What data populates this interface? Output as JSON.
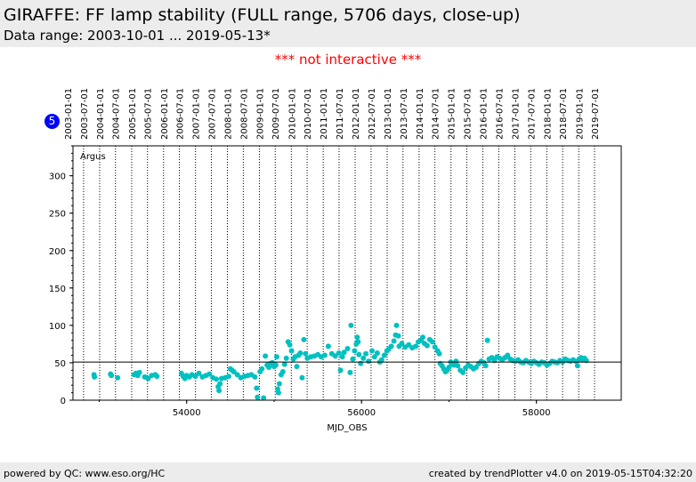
{
  "header": {
    "title": "GIRAFFE: FF lamp stability (FULL range, 5706 days, close-up)",
    "subtitle": "Data range: 2003-10-01 ... 2019-05-13*"
  },
  "notice": "*** not interactive ***",
  "badge": "5",
  "footer": {
    "left": "powered by QC: www.eso.org/HC",
    "right": "created by trendPlotter v4.0 on 2019-05-15T04:32:20"
  },
  "colors": {
    "points": "#00c0c0",
    "notice": "#ff0000",
    "badge": "#0000ff",
    "background_bars": "#ececec"
  },
  "chart_data": {
    "type": "scatter",
    "xlabel": "MJD_OBS",
    "ylabel": "",
    "xlim": [
      52700,
      58970
    ],
    "ylim": [
      0,
      340
    ],
    "xticks": [
      54000,
      56000,
      58000
    ],
    "yticks": [
      0,
      50,
      100,
      150,
      200,
      250,
      300
    ],
    "panel_label": "Argus",
    "reference_line_y": 51,
    "top_axis_dates": [
      "2003-01-01",
      "2003-07-01",
      "2004-01-01",
      "2004-07-01",
      "2005-01-01",
      "2005-07-01",
      "2006-01-01",
      "2006-07-01",
      "2007-01-01",
      "2007-07-01",
      "2008-01-01",
      "2008-07-01",
      "2009-01-01",
      "2009-07-01",
      "2010-01-01",
      "2010-07-01",
      "2011-01-01",
      "2011-07-01",
      "2012-01-01",
      "2012-07-01",
      "2013-01-01",
      "2013-07-01",
      "2014-01-01",
      "2014-07-01",
      "2015-01-01",
      "2015-07-01",
      "2016-01-01",
      "2016-07-01",
      "2017-01-01",
      "2017-07-01",
      "2018-01-01",
      "2018-07-01",
      "2019-01-01",
      "2019-07-01"
    ],
    "top_axis_mjd": [
      52640,
      52821,
      53005,
      53186,
      53371,
      53552,
      53736,
      53917,
      54101,
      54282,
      54466,
      54648,
      54832,
      55013,
      55197,
      55378,
      55562,
      55743,
      55927,
      56109,
      56293,
      56474,
      56658,
      56839,
      57023,
      57204,
      57388,
      57570,
      57754,
      57935,
      58119,
      58300,
      58484,
      58665
    ],
    "series": [
      {
        "points": [
          [
            52940,
            34
          ],
          [
            52945,
            31
          ],
          [
            53130,
            35
          ],
          [
            53140,
            33
          ],
          [
            53210,
            30
          ],
          [
            53400,
            34
          ],
          [
            53420,
            36
          ],
          [
            53440,
            33
          ],
          [
            53460,
            37
          ],
          [
            53520,
            31
          ],
          [
            53560,
            29
          ],
          [
            53600,
            33
          ],
          [
            53640,
            34
          ],
          [
            53660,
            32
          ],
          [
            53940,
            36
          ],
          [
            53960,
            32
          ],
          [
            53980,
            29
          ],
          [
            54000,
            33
          ],
          [
            54030,
            31
          ],
          [
            54060,
            34
          ],
          [
            54100,
            32
          ],
          [
            54140,
            36
          ],
          [
            54180,
            31
          ],
          [
            54220,
            33
          ],
          [
            54260,
            35
          ],
          [
            54300,
            30
          ],
          [
            54340,
            28
          ],
          [
            54360,
            18
          ],
          [
            54370,
            13
          ],
          [
            54380,
            22
          ],
          [
            54400,
            29
          ],
          [
            54440,
            30
          ],
          [
            54480,
            32
          ],
          [
            54500,
            42
          ],
          [
            54520,
            40
          ],
          [
            54540,
            38
          ],
          [
            54580,
            34
          ],
          [
            54620,
            30
          ],
          [
            54660,
            32
          ],
          [
            54700,
            33
          ],
          [
            54740,
            34
          ],
          [
            54780,
            31
          ],
          [
            54800,
            16
          ],
          [
            54810,
            4
          ],
          [
            54840,
            38
          ],
          [
            54860,
            42
          ],
          [
            54880,
            3
          ],
          [
            54900,
            59
          ],
          [
            54920,
            47
          ],
          [
            54940,
            44
          ],
          [
            54960,
            49
          ],
          [
            54980,
            50
          ],
          [
            55000,
            45
          ],
          [
            55020,
            47
          ],
          [
            55030,
            58
          ],
          [
            55040,
            15
          ],
          [
            55050,
            10
          ],
          [
            55060,
            22
          ],
          [
            55080,
            34
          ],
          [
            55100,
            38
          ],
          [
            55120,
            48
          ],
          [
            55140,
            56
          ],
          [
            55160,
            78
          ],
          [
            55180,
            74
          ],
          [
            55200,
            66
          ],
          [
            55220,
            55
          ],
          [
            55240,
            58
          ],
          [
            55260,
            45
          ],
          [
            55280,
            60
          ],
          [
            55300,
            63
          ],
          [
            55320,
            30
          ],
          [
            55340,
            81
          ],
          [
            55360,
            62
          ],
          [
            55380,
            56
          ],
          [
            55420,
            58
          ],
          [
            55460,
            59
          ],
          [
            55500,
            61
          ],
          [
            55540,
            58
          ],
          [
            55580,
            60
          ],
          [
            55620,
            72
          ],
          [
            55660,
            62
          ],
          [
            55700,
            59
          ],
          [
            55740,
            63
          ],
          [
            55760,
            40
          ],
          [
            55780,
            58
          ],
          [
            55800,
            64
          ],
          [
            55840,
            69
          ],
          [
            55870,
            37
          ],
          [
            55880,
            100
          ],
          [
            55900,
            55
          ],
          [
            55920,
            66
          ],
          [
            55940,
            75
          ],
          [
            55950,
            84
          ],
          [
            55960,
            78
          ],
          [
            55970,
            61
          ],
          [
            55990,
            49
          ],
          [
            56020,
            56
          ],
          [
            56050,
            62
          ],
          [
            56080,
            52
          ],
          [
            56120,
            66
          ],
          [
            56150,
            58
          ],
          [
            56180,
            63
          ],
          [
            56210,
            51
          ],
          [
            56230,
            54
          ],
          [
            56260,
            60
          ],
          [
            56290,
            66
          ],
          [
            56310,
            68
          ],
          [
            56340,
            72
          ],
          [
            56370,
            79
          ],
          [
            56390,
            87
          ],
          [
            56400,
            100
          ],
          [
            56420,
            86
          ],
          [
            56430,
            72
          ],
          [
            56460,
            76
          ],
          [
            56500,
            71
          ],
          [
            56540,
            74
          ],
          [
            56580,
            70
          ],
          [
            56620,
            72
          ],
          [
            56650,
            78
          ],
          [
            56680,
            80
          ],
          [
            56700,
            84
          ],
          [
            56720,
            76
          ],
          [
            56750,
            73
          ],
          [
            56780,
            81
          ],
          [
            56810,
            78
          ],
          [
            56840,
            71
          ],
          [
            56870,
            66
          ],
          [
            56890,
            62
          ],
          [
            56900,
            49
          ],
          [
            56920,
            46
          ],
          [
            56940,
            42
          ],
          [
            56960,
            38
          ],
          [
            56980,
            40
          ],
          [
            57000,
            44
          ],
          [
            57020,
            51
          ],
          [
            57040,
            48
          ],
          [
            57060,
            47
          ],
          [
            57080,
            52
          ],
          [
            57100,
            46
          ],
          [
            57130,
            40
          ],
          [
            57160,
            37
          ],
          [
            57190,
            43
          ],
          [
            57220,
            47
          ],
          [
            57250,
            45
          ],
          [
            57280,
            42
          ],
          [
            57310,
            44
          ],
          [
            57340,
            49
          ],
          [
            57370,
            52
          ],
          [
            57400,
            50
          ],
          [
            57420,
            46
          ],
          [
            57440,
            80
          ],
          [
            57460,
            55
          ],
          [
            57490,
            57
          ],
          [
            57520,
            53
          ],
          [
            57550,
            58
          ],
          [
            57580,
            56
          ],
          [
            57610,
            54
          ],
          [
            57640,
            57
          ],
          [
            57670,
            60
          ],
          [
            57700,
            55
          ],
          [
            57730,
            53
          ],
          [
            57760,
            52
          ],
          [
            57790,
            54
          ],
          [
            57820,
            51
          ],
          [
            57850,
            50
          ],
          [
            57880,
            53
          ],
          [
            57910,
            51
          ],
          [
            57940,
            49
          ],
          [
            57970,
            52
          ],
          [
            58000,
            50
          ],
          [
            58030,
            48
          ],
          [
            58060,
            51
          ],
          [
            58090,
            50
          ],
          [
            58120,
            47
          ],
          [
            58150,
            49
          ],
          [
            58180,
            52
          ],
          [
            58210,
            51
          ],
          [
            58240,
            50
          ],
          [
            58270,
            53
          ],
          [
            58300,
            51
          ],
          [
            58330,
            55
          ],
          [
            58360,
            53
          ],
          [
            58390,
            52
          ],
          [
            58420,
            54
          ],
          [
            58450,
            52
          ],
          [
            58470,
            46
          ],
          [
            58490,
            55
          ],
          [
            58510,
            57
          ],
          [
            58530,
            54
          ],
          [
            58550,
            56
          ],
          [
            58570,
            53
          ]
        ]
      }
    ]
  }
}
